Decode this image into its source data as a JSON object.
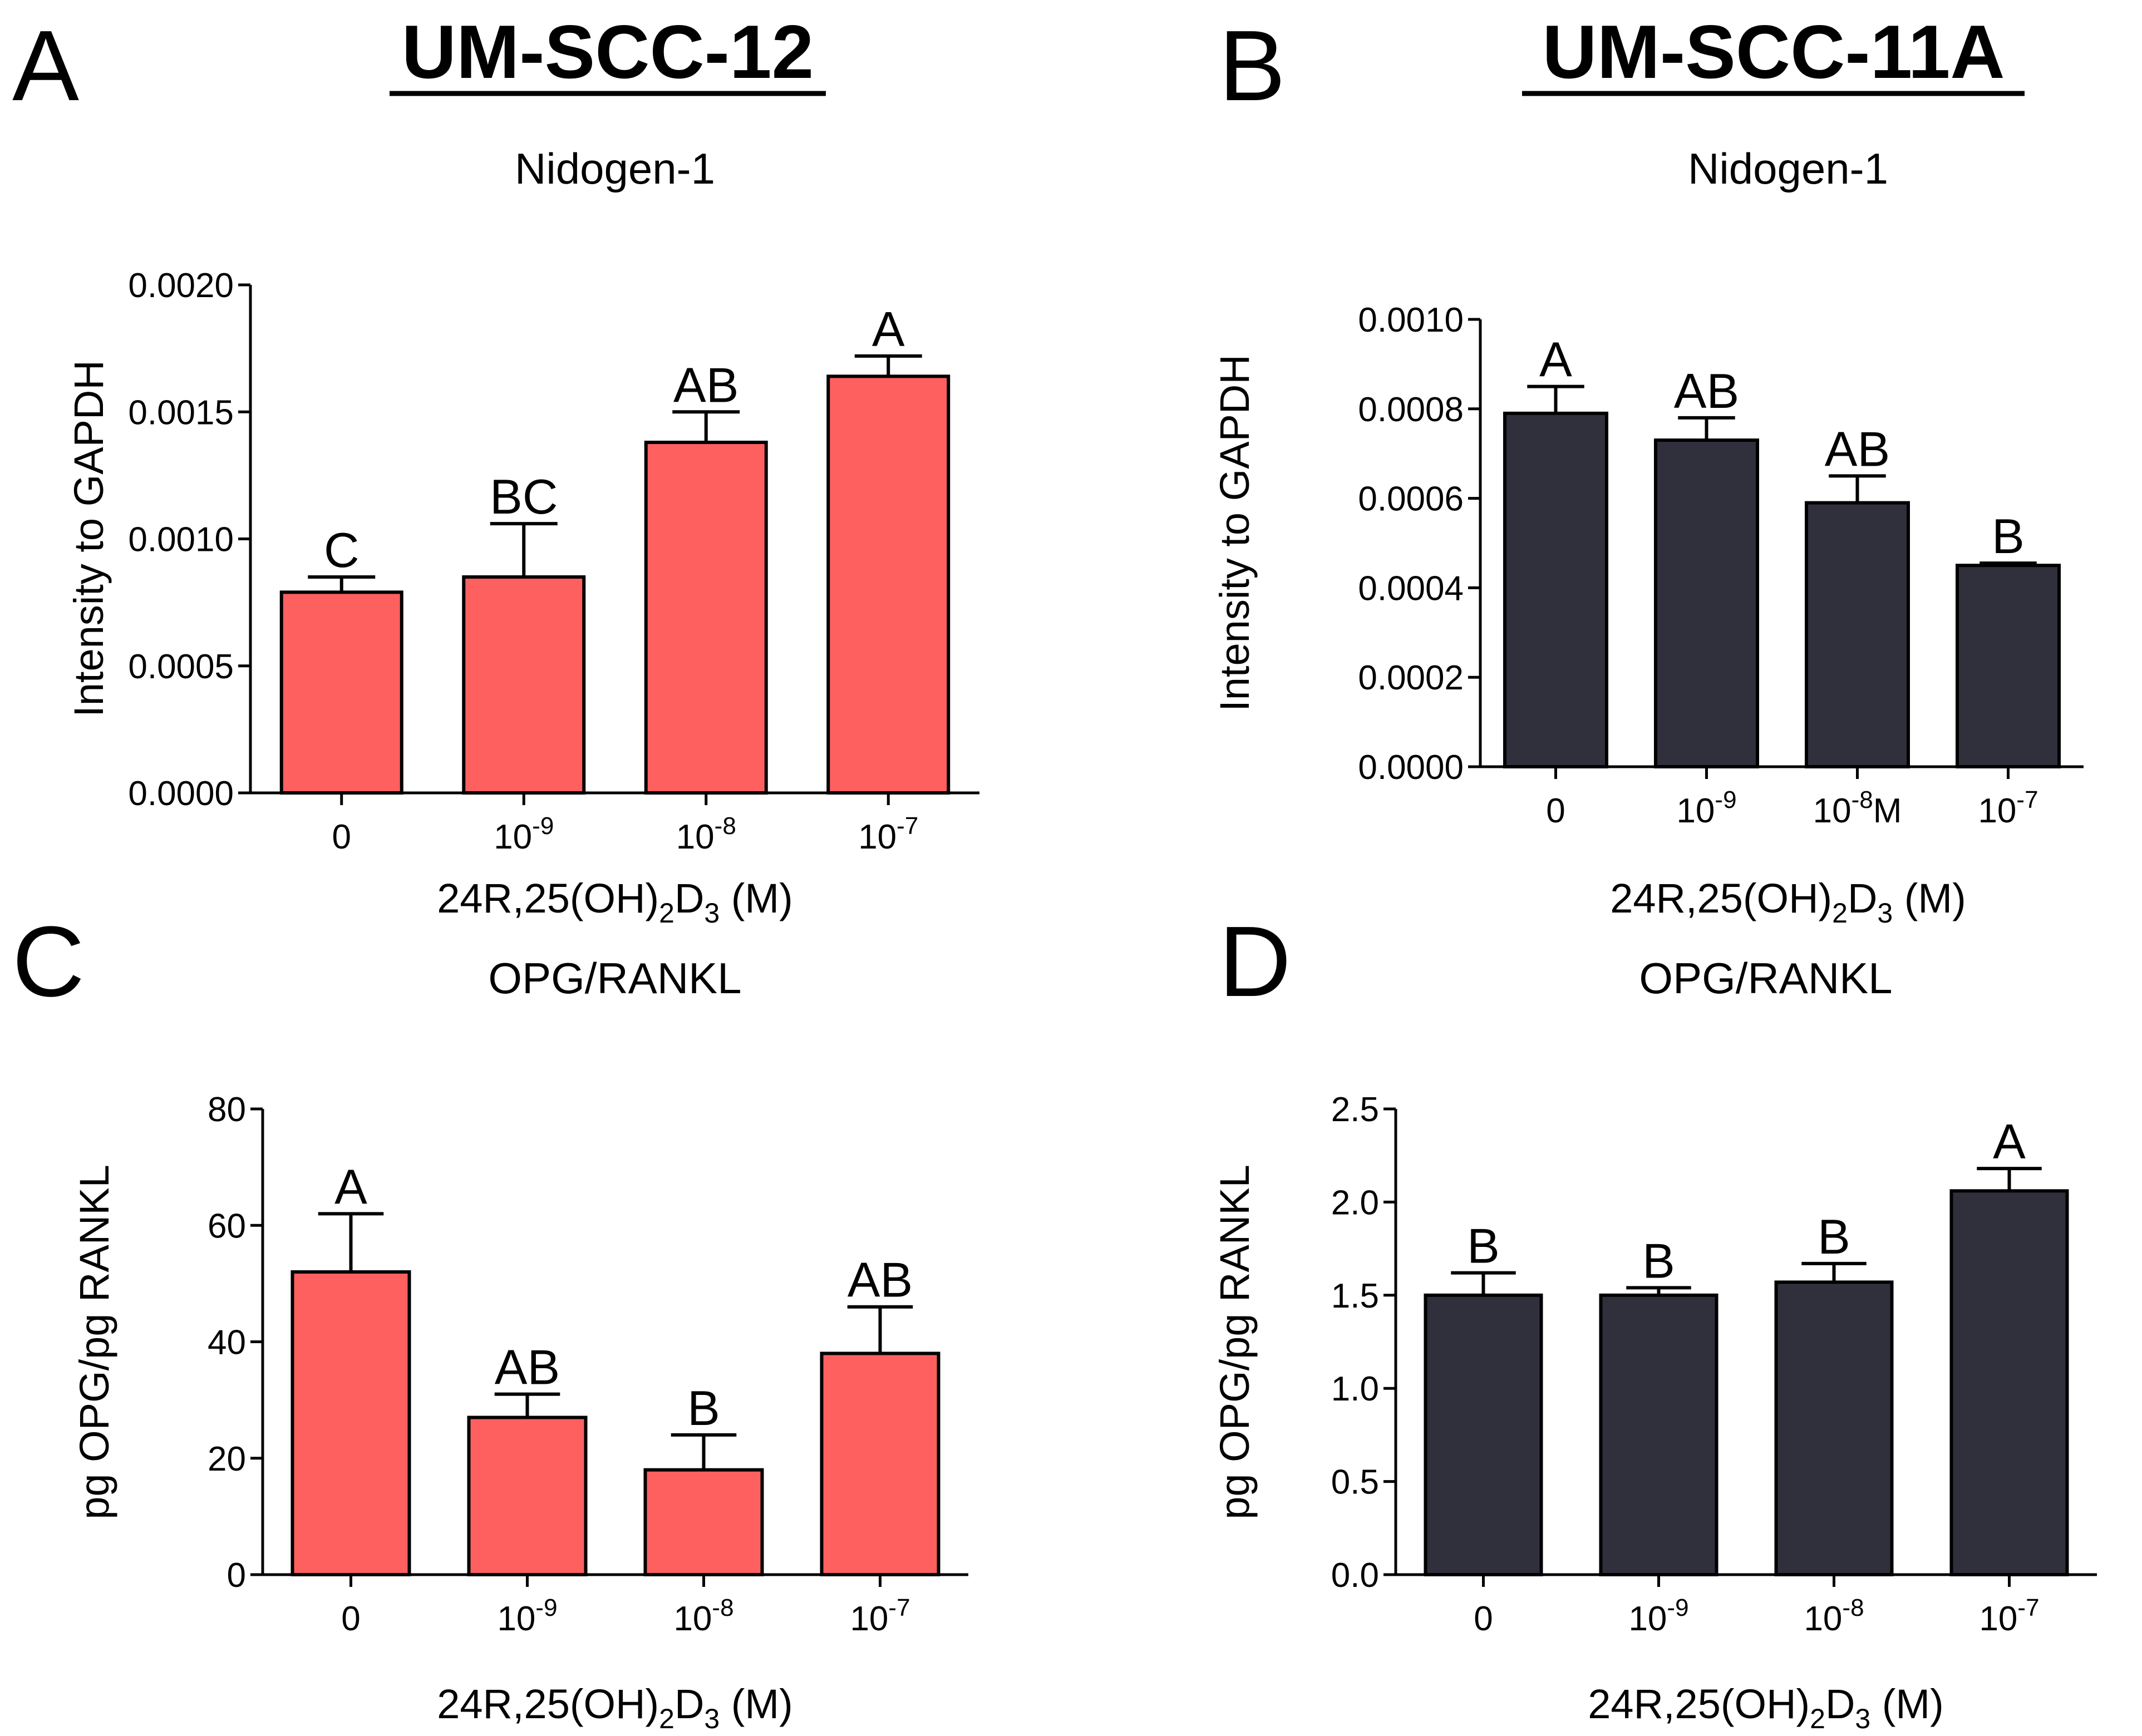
{
  "figure": {
    "headers": [
      {
        "text": "UM-SCC-12",
        "underline": true
      },
      {
        "text": "UM-SCC-11A",
        "underline": true
      }
    ]
  },
  "colors": {
    "red": "#fe6060",
    "dark": "#30303c",
    "axis": "#000000"
  },
  "chart_data": [
    {
      "panel": "A",
      "type": "bar",
      "title": "Nidogen-1",
      "ylabel": "Intensity to  GAPDH",
      "xlabel": {
        "base": "24R,25(OH)",
        "sub1": "2",
        "mid": "D",
        "sub2": "3",
        "tail": " (M)"
      },
      "ylim": [
        0,
        0.002
      ],
      "yticks": [
        0,
        0.0005,
        0.001,
        0.0015,
        0.002
      ],
      "ytick_labels": [
        "0.0000",
        "0.0005",
        "0.0010",
        "0.0015",
        "0.0020"
      ],
      "categories": [
        {
          "base": "0",
          "exp": "",
          "suffix": ""
        },
        {
          "base": "10",
          "exp": "-9",
          "suffix": ""
        },
        {
          "base": "10",
          "exp": "-8",
          "suffix": ""
        },
        {
          "base": "10",
          "exp": "-7",
          "suffix": ""
        }
      ],
      "values": [
        0.00079,
        0.00085,
        0.00138,
        0.00164
      ],
      "errors": [
        6e-05,
        0.00021,
        0.00012,
        8e-05
      ],
      "labels": [
        "C",
        "BC",
        "AB",
        "A"
      ],
      "color": "#fe6060"
    },
    {
      "panel": "B",
      "type": "bar",
      "title": "Nidogen-1",
      "ylabel": "Intensity to GAPDH",
      "xlabel": {
        "base": "24R,25(OH)",
        "sub1": "2",
        "mid": "D",
        "sub2": "3",
        "tail": " (M)"
      },
      "ylim": [
        0,
        0.001
      ],
      "yticks": [
        0,
        0.0002,
        0.0004,
        0.0006,
        0.0008,
        0.001
      ],
      "ytick_labels": [
        "0.0000",
        "0.0002",
        "0.0004",
        "0.0006",
        "0.0008",
        "0.0010"
      ],
      "categories": [
        {
          "base": "0",
          "exp": "",
          "suffix": ""
        },
        {
          "base": "10",
          "exp": "-9",
          "suffix": ""
        },
        {
          "base": "10",
          "exp": "-8",
          "suffix": "M"
        },
        {
          "base": "10",
          "exp": "-7",
          "suffix": ""
        }
      ],
      "values": [
        0.00079,
        0.00073,
        0.00059,
        0.00045
      ],
      "errors": [
        6e-05,
        5e-05,
        6e-05,
        5e-06
      ],
      "labels": [
        "A",
        "AB",
        "AB",
        "B"
      ],
      "color": "#30303c"
    },
    {
      "panel": "C",
      "type": "bar",
      "title": "OPG/RANKL",
      "ylabel": "pg OPG/pg RANKL",
      "xlabel": {
        "base": "24R,25(OH)",
        "sub1": "2",
        "mid": "D",
        "sub2": "3",
        "tail": " (M)"
      },
      "ylim": [
        0,
        80
      ],
      "yticks": [
        0,
        20,
        40,
        60,
        80
      ],
      "ytick_labels": [
        "0",
        "20",
        "40",
        "60",
        "80"
      ],
      "categories": [
        {
          "base": "0",
          "exp": "",
          "suffix": ""
        },
        {
          "base": "10",
          "exp": "-9",
          "suffix": ""
        },
        {
          "base": "10",
          "exp": "-8",
          "suffix": ""
        },
        {
          "base": "10",
          "exp": "-7",
          "suffix": ""
        }
      ],
      "values": [
        52,
        27,
        18,
        38
      ],
      "errors": [
        10,
        4,
        6,
        8
      ],
      "labels": [
        "A",
        "AB",
        "B",
        "AB"
      ],
      "color": "#fe6060"
    },
    {
      "panel": "D",
      "type": "bar",
      "title": "OPG/RANKL",
      "ylabel": "pg OPG/pg RANKL",
      "xlabel": {
        "base": "24R,25(OH)",
        "sub1": "2",
        "mid": "D",
        "sub2": "3",
        "tail": " (M)"
      },
      "ylim": [
        0,
        2.5
      ],
      "yticks": [
        0,
        0.5,
        1,
        1.5,
        2,
        2.5
      ],
      "ytick_labels": [
        "0.0",
        "0.5",
        "1.0",
        "1.5",
        "2.0",
        "2.5"
      ],
      "categories": [
        {
          "base": "0",
          "exp": "",
          "suffix": ""
        },
        {
          "base": "10",
          "exp": "-9",
          "suffix": ""
        },
        {
          "base": "10",
          "exp": "-8",
          "suffix": ""
        },
        {
          "base": "10",
          "exp": "-7",
          "suffix": ""
        }
      ],
      "values": [
        1.5,
        1.5,
        1.57,
        2.06
      ],
      "errors": [
        0.12,
        0.04,
        0.1,
        0.12
      ],
      "labels": [
        "B",
        "B",
        "B",
        "A"
      ],
      "color": "#30303c"
    }
  ]
}
